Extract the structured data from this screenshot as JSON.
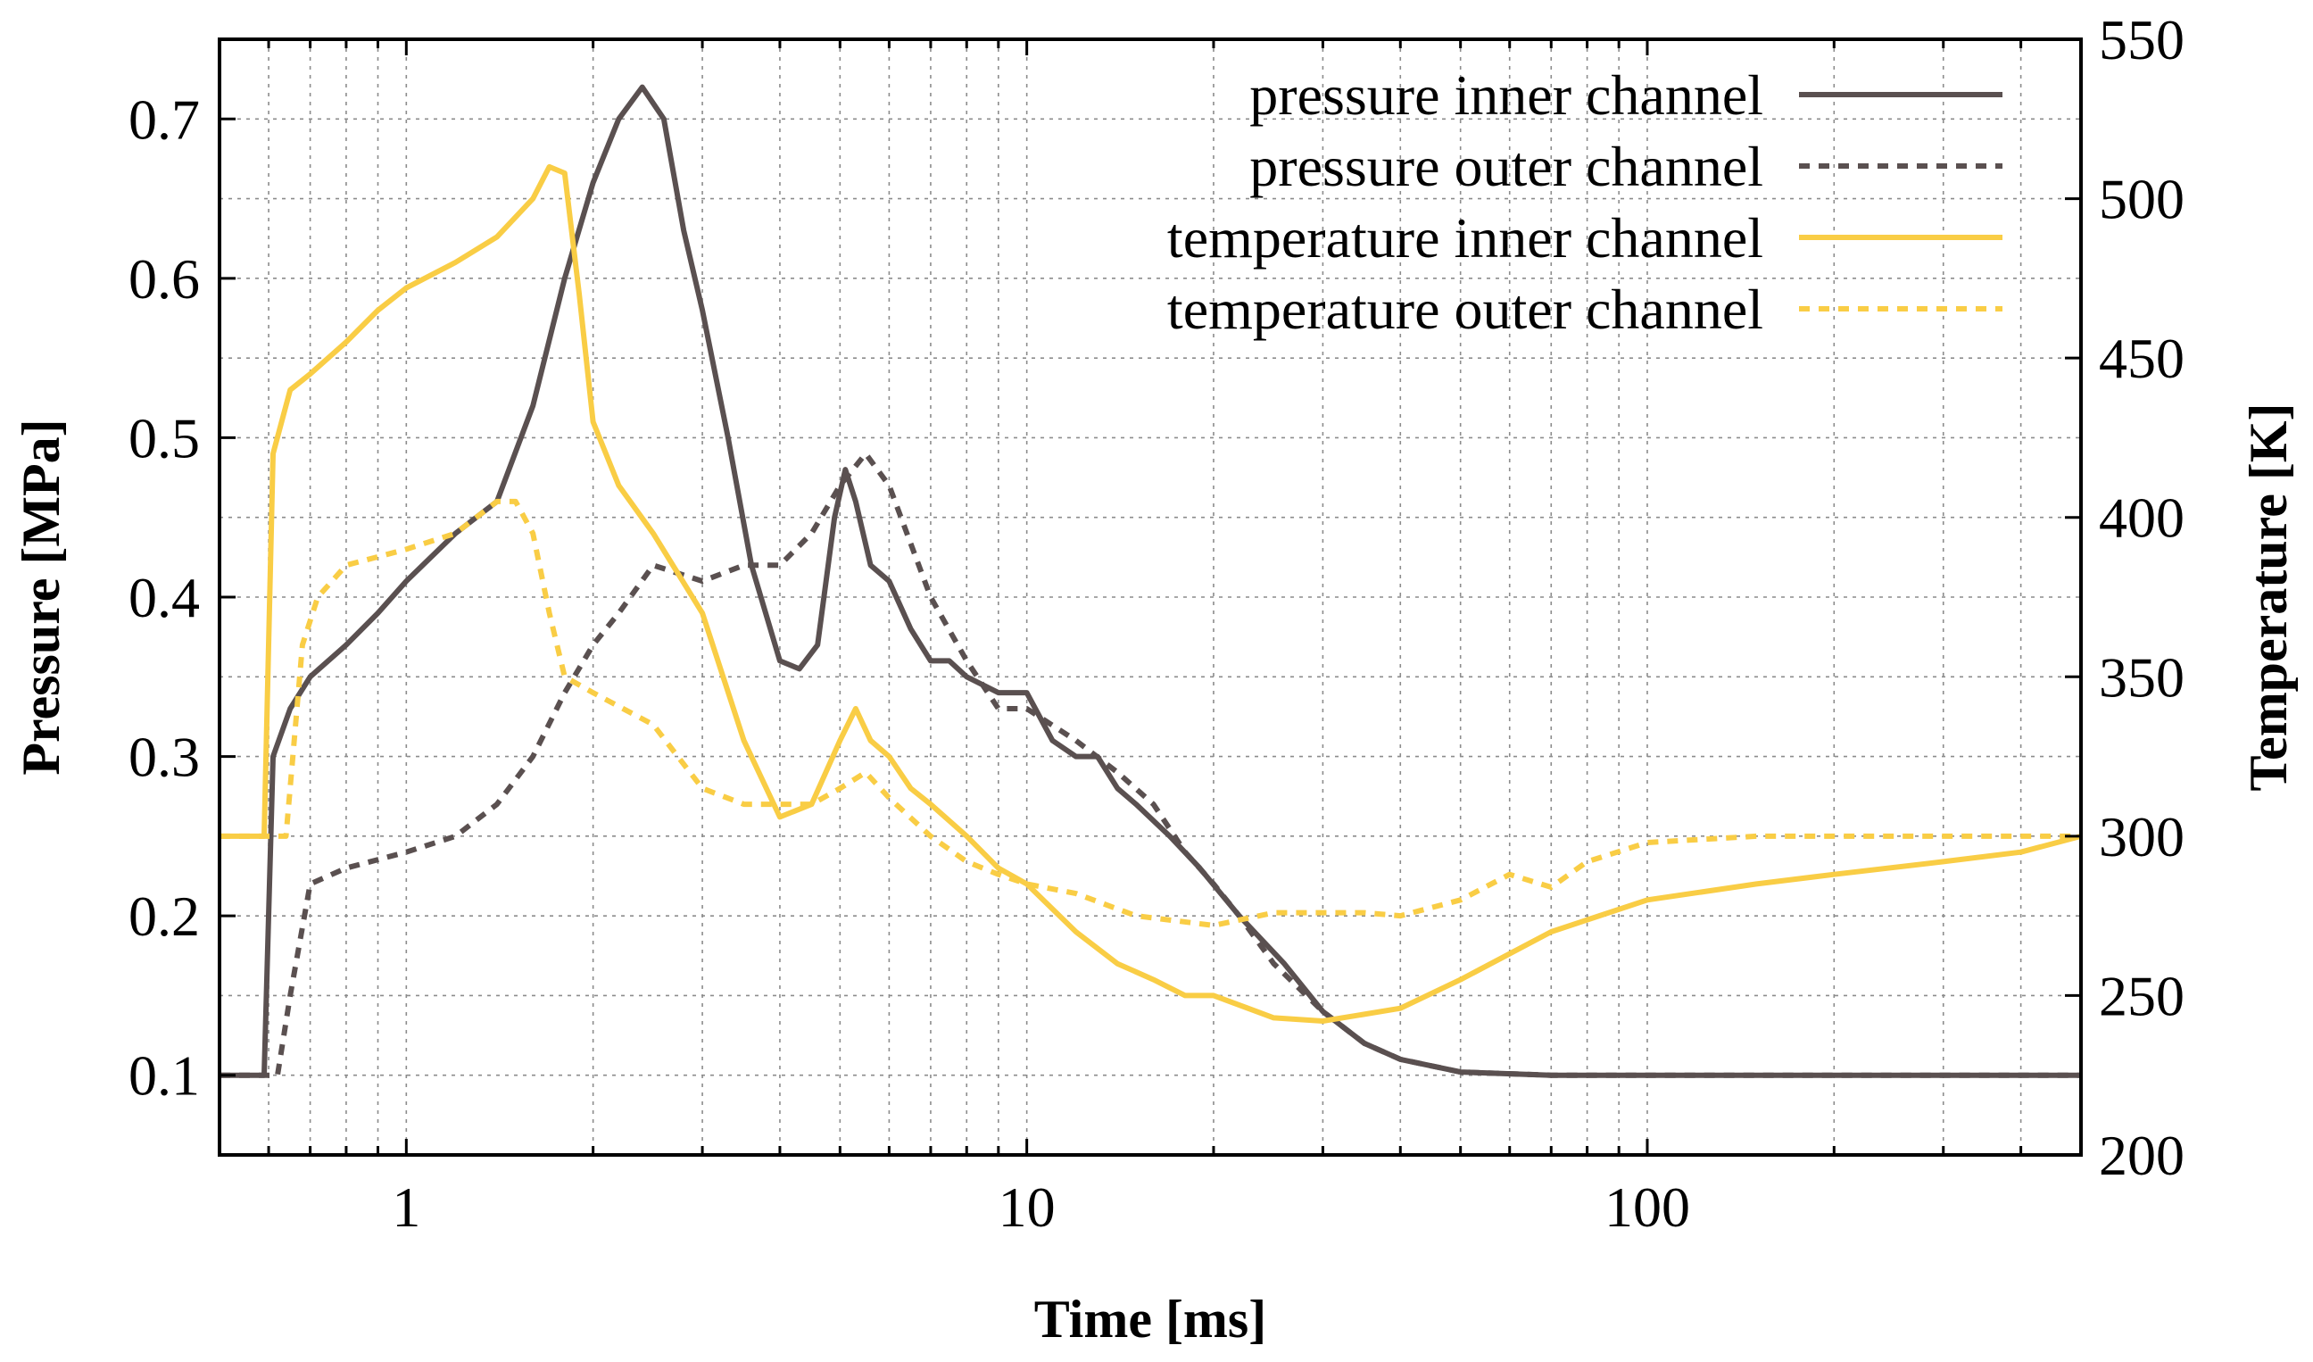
{
  "chart_data": {
    "type": "line",
    "title": "",
    "xlabel": "Time [ms]",
    "ylabel_left": "Pressure [MPa]",
    "ylabel_right": "Temperature [K]",
    "xscale": "log",
    "xlim": [
      0.5,
      500
    ],
    "ylim_left": [
      0.05,
      0.75
    ],
    "ylim_right": [
      200,
      550
    ],
    "x_ticks": [
      {
        "value": 1,
        "label": "1"
      },
      {
        "value": 10,
        "label": "10"
      },
      {
        "value": 100,
        "label": "100"
      }
    ],
    "y_left_ticks": [
      {
        "value": 0.1,
        "label": "0.1"
      },
      {
        "value": 0.2,
        "label": "0.2"
      },
      {
        "value": 0.3,
        "label": "0.3"
      },
      {
        "value": 0.4,
        "label": "0.4"
      },
      {
        "value": 0.5,
        "label": "0.5"
      },
      {
        "value": 0.6,
        "label": "0.6"
      },
      {
        "value": 0.7,
        "label": "0.7"
      }
    ],
    "y_right_ticks": [
      {
        "value": 200,
        "label": "200"
      },
      {
        "value": 250,
        "label": "250"
      },
      {
        "value": 300,
        "label": "300"
      },
      {
        "value": 350,
        "label": "350"
      },
      {
        "value": 400,
        "label": "400"
      },
      {
        "value": 450,
        "label": "450"
      },
      {
        "value": 500,
        "label": "500"
      },
      {
        "value": 550,
        "label": "550"
      }
    ],
    "grid": true,
    "legend_position": "top-right",
    "series": [
      {
        "name": "pressure inner channel",
        "axis": "left",
        "color": "#5a5050",
        "dash": "solid",
        "x": [
          0.5,
          0.59,
          0.61,
          0.65,
          0.7,
          0.8,
          0.9,
          1.0,
          1.2,
          1.4,
          1.6,
          1.8,
          2.0,
          2.2,
          2.4,
          2.6,
          2.8,
          3.0,
          3.3,
          3.6,
          4.0,
          4.3,
          4.6,
          4.9,
          5.1,
          5.3,
          5.6,
          6.0,
          6.5,
          7.0,
          7.5,
          8.0,
          9.0,
          10.0,
          11.0,
          12.0,
          13.0,
          14.0,
          15.0,
          17.0,
          19.0,
          22.0,
          26.0,
          30.0,
          35.0,
          40.0,
          50.0,
          70.0,
          100.0,
          200.0,
          500.0
        ],
        "y": [
          0.1,
          0.1,
          0.3,
          0.33,
          0.35,
          0.37,
          0.39,
          0.41,
          0.44,
          0.46,
          0.52,
          0.6,
          0.66,
          0.7,
          0.72,
          0.7,
          0.63,
          0.58,
          0.5,
          0.42,
          0.36,
          0.355,
          0.37,
          0.45,
          0.48,
          0.46,
          0.42,
          0.41,
          0.38,
          0.36,
          0.36,
          0.35,
          0.34,
          0.34,
          0.31,
          0.3,
          0.3,
          0.28,
          0.27,
          0.25,
          0.23,
          0.2,
          0.17,
          0.14,
          0.12,
          0.11,
          0.102,
          0.1,
          0.1,
          0.1,
          0.1
        ]
      },
      {
        "name": "pressure outer channel",
        "axis": "left",
        "color": "#5a5050",
        "dash": "dashed",
        "x": [
          0.5,
          0.62,
          0.65,
          0.7,
          0.8,
          1.0,
          1.2,
          1.4,
          1.6,
          1.8,
          2.0,
          2.2,
          2.5,
          3.0,
          3.5,
          4.0,
          4.5,
          5.0,
          5.5,
          6.0,
          7.0,
          8.0,
          9.0,
          10.0,
          12.0,
          14.0,
          16.0,
          18.0,
          20.0,
          22.0,
          25.0,
          30.0,
          35.0,
          40.0,
          50.0,
          70.0,
          100.0,
          200.0,
          500.0
        ],
        "y": [
          0.1,
          0.1,
          0.15,
          0.22,
          0.23,
          0.24,
          0.25,
          0.27,
          0.3,
          0.34,
          0.37,
          0.39,
          0.42,
          0.41,
          0.42,
          0.42,
          0.44,
          0.47,
          0.49,
          0.47,
          0.4,
          0.36,
          0.33,
          0.33,
          0.31,
          0.29,
          0.27,
          0.24,
          0.22,
          0.2,
          0.17,
          0.14,
          0.12,
          0.11,
          0.102,
          0.1,
          0.1,
          0.1,
          0.1
        ]
      },
      {
        "name": "temperature inner channel",
        "axis": "right",
        "color": "#f9cd45",
        "dash": "solid",
        "x": [
          0.5,
          0.59,
          0.61,
          0.65,
          0.7,
          0.8,
          0.9,
          1.0,
          1.2,
          1.4,
          1.6,
          1.7,
          1.8,
          1.9,
          2.0,
          2.2,
          2.5,
          3.0,
          3.5,
          4.0,
          4.5,
          5.0,
          5.3,
          5.6,
          6.0,
          6.5,
          7.0,
          8.0,
          9.0,
          10.0,
          12.0,
          14.0,
          16.0,
          18.0,
          20.0,
          25.0,
          30.0,
          40.0,
          50.0,
          70.0,
          100.0,
          150.0,
          200.0,
          300.0,
          400.0,
          500.0
        ],
        "y": [
          300,
          300,
          420,
          440,
          445,
          455,
          465,
          472,
          480,
          488,
          500,
          510,
          508,
          470,
          430,
          410,
          395,
          370,
          330,
          306,
          310,
          330,
          340,
          330,
          325,
          315,
          310,
          300,
          290,
          285,
          270,
          260,
          255,
          250,
          250,
          243,
          242,
          246,
          255,
          270,
          280,
          285,
          288,
          292,
          295,
          300
        ]
      },
      {
        "name": "temperature outer channel",
        "axis": "right",
        "color": "#f9cd45",
        "dash": "dashed",
        "x": [
          0.5,
          0.64,
          0.68,
          0.72,
          0.8,
          1.0,
          1.2,
          1.4,
          1.5,
          1.6,
          1.7,
          1.8,
          2.0,
          2.5,
          3.0,
          3.5,
          4.0,
          4.5,
          5.0,
          5.5,
          6.0,
          7.0,
          8.0,
          9.0,
          10.0,
          12.0,
          15.0,
          20.0,
          25.0,
          30.0,
          35.0,
          40.0,
          50.0,
          60.0,
          70.0,
          80.0,
          100.0,
          150.0,
          200.0,
          500.0
        ],
        "y": [
          300,
          300,
          360,
          375,
          385,
          390,
          395,
          405,
          405,
          395,
          370,
          350,
          345,
          335,
          315,
          310,
          310,
          310,
          315,
          320,
          312,
          300,
          292,
          288,
          285,
          282,
          275,
          272,
          276,
          276,
          276,
          275,
          280,
          288,
          284,
          292,
          298,
          300,
          300,
          300
        ]
      }
    ]
  }
}
